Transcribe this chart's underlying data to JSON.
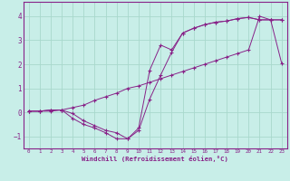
{
  "xlabel": "Windchill (Refroidissement éolien,°C)",
  "bg_color": "#c8eee8",
  "line_color": "#882288",
  "grid_color": "#a8d8cc",
  "xlim": [
    -0.5,
    23.5
  ],
  "ylim": [
    -1.5,
    4.6
  ],
  "xticks": [
    0,
    1,
    2,
    3,
    4,
    5,
    6,
    7,
    8,
    9,
    10,
    11,
    12,
    13,
    14,
    15,
    16,
    17,
    18,
    19,
    20,
    21,
    22,
    23
  ],
  "yticks": [
    -1,
    0,
    1,
    2,
    3,
    4
  ],
  "line1_x": [
    0,
    1,
    2,
    3,
    4,
    5,
    6,
    7,
    8,
    9,
    10,
    11,
    12,
    13,
    14,
    15,
    16,
    17,
    18,
    19,
    20,
    21,
    22,
    23
  ],
  "line1_y": [
    0.05,
    0.05,
    0.05,
    0.1,
    -0.25,
    -0.5,
    -0.65,
    -0.85,
    -1.1,
    -1.1,
    -0.75,
    0.55,
    1.55,
    2.5,
    3.3,
    3.5,
    3.65,
    3.75,
    3.8,
    3.9,
    3.95,
    3.85,
    3.85,
    3.85
  ],
  "line2_x": [
    0,
    1,
    2,
    3,
    4,
    5,
    6,
    7,
    8,
    9,
    10,
    11,
    12,
    13,
    14,
    15,
    16,
    17,
    18,
    19,
    20,
    21,
    22,
    23
  ],
  "line2_y": [
    0.05,
    0.05,
    0.1,
    0.1,
    -0.05,
    -0.35,
    -0.55,
    -0.75,
    -0.85,
    -1.1,
    -0.65,
    1.75,
    2.8,
    2.6,
    3.3,
    3.5,
    3.65,
    3.75,
    3.8,
    3.9,
    3.95,
    3.85,
    3.85,
    3.85
  ],
  "line3_x": [
    0,
    1,
    2,
    3,
    4,
    5,
    6,
    7,
    8,
    9,
    10,
    11,
    12,
    13,
    14,
    15,
    16,
    17,
    18,
    19,
    20,
    21,
    22,
    23
  ],
  "line3_y": [
    0.05,
    0.05,
    0.1,
    0.1,
    0.2,
    0.3,
    0.5,
    0.65,
    0.8,
    1.0,
    1.1,
    1.25,
    1.4,
    1.55,
    1.7,
    1.85,
    2.0,
    2.15,
    2.3,
    2.45,
    2.6,
    4.0,
    3.85,
    2.05
  ]
}
